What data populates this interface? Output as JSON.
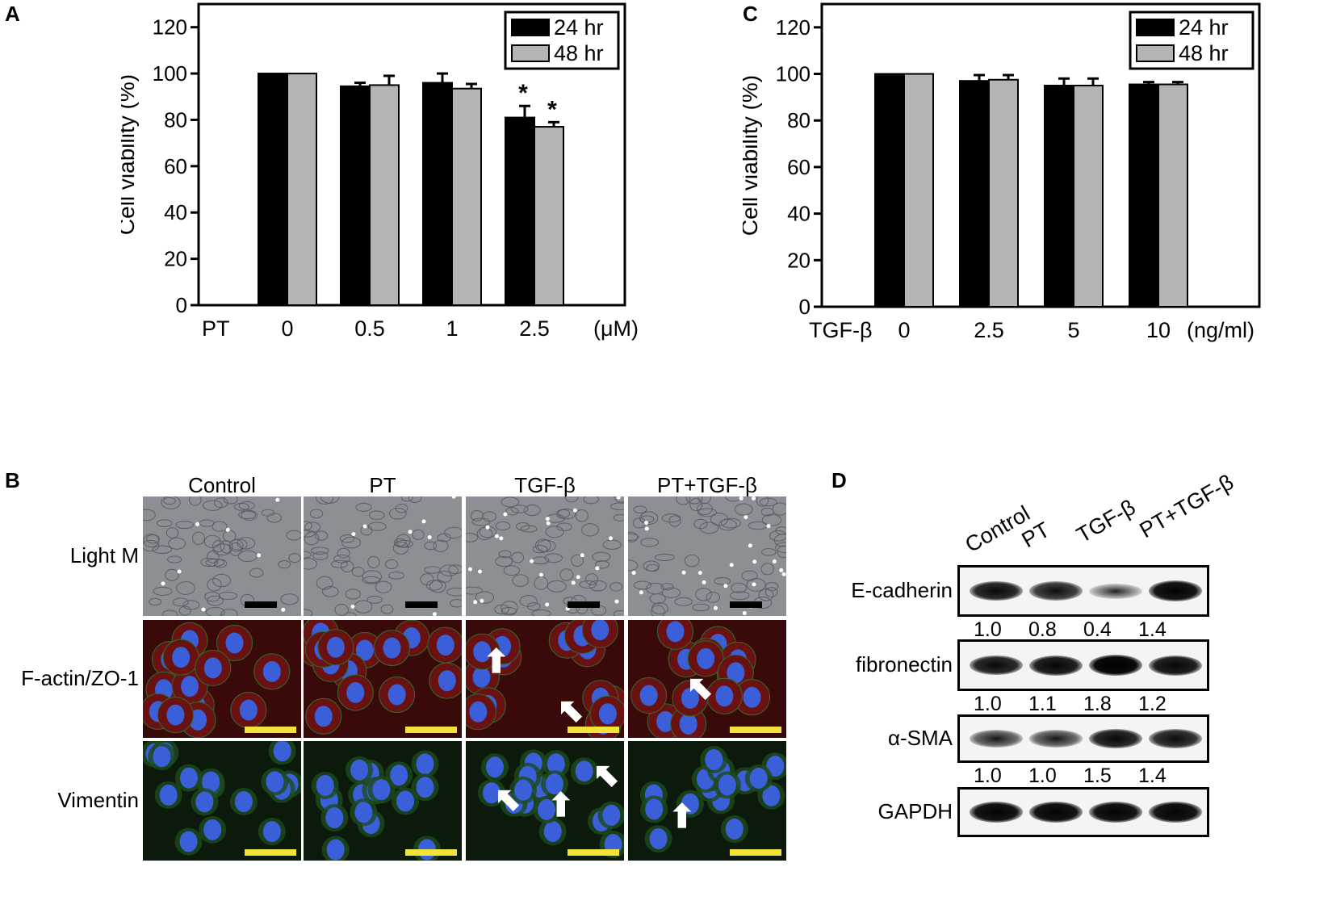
{
  "panels": {
    "A": "A",
    "B": "B",
    "C": "C",
    "D": "D"
  },
  "chart_data": [
    {
      "type": "bar",
      "panel": "A",
      "ylabel": "Cell viability (%)",
      "xprefix": "PT",
      "xunit": "(μM)",
      "categories": [
        "0",
        "0.5",
        "1",
        "2.5"
      ],
      "ylim": [
        0,
        130
      ],
      "yticks": [
        "0",
        "20",
        "40",
        "60",
        "80",
        "100",
        "120"
      ],
      "series": [
        {
          "name": "24 hr",
          "color": "#000000",
          "values": [
            100,
            94.5,
            96,
            81
          ],
          "errors": [
            0,
            1.5,
            4,
            5
          ]
        },
        {
          "name": "48 hr",
          "color": "#b4b4b4",
          "values": [
            100,
            95,
            93.5,
            77
          ],
          "errors": [
            0,
            4,
            2,
            2
          ]
        }
      ],
      "significance": [
        "",
        "",
        "",
        "*"
      ],
      "legend": "top-right"
    },
    {
      "type": "bar",
      "panel": "C",
      "ylabel": "Cell viability (%)",
      "xprefix": "TGF-β",
      "xunit": "(ng/ml)",
      "categories": [
        "0",
        "2.5",
        "5",
        "10"
      ],
      "ylim": [
        0,
        130
      ],
      "yticks": [
        "0",
        "20",
        "40",
        "60",
        "80",
        "100",
        "120"
      ],
      "series": [
        {
          "name": "24 hr",
          "color": "#000000",
          "values": [
            100,
            97,
            95,
            95.5
          ],
          "errors": [
            0,
            2.5,
            3,
            1
          ]
        },
        {
          "name": "48 hr",
          "color": "#b4b4b4",
          "values": [
            100,
            97.5,
            95,
            95.5
          ],
          "errors": [
            0,
            2,
            3,
            1
          ]
        }
      ],
      "legend": "top-right"
    }
  ],
  "microscopy": {
    "columns": [
      "Control",
      "PT",
      "TGF-β",
      "PT+TGF-β"
    ],
    "rows": [
      "Light M",
      "F-actin/ZO-1",
      "Vimentin"
    ],
    "colors": {
      "light": "#8c8f94",
      "factin_bg": "#3a0a0a",
      "factin_cell": "#6a1212",
      "nucleus": "#3a5fd8",
      "vim_bg": "#0c1a0c",
      "scalebar_light": "#000000",
      "scalebar_fluor": "#f2e33a"
    }
  },
  "western": {
    "lanes": [
      "Control",
      "PT",
      "TGF-β",
      "PT+TGF-β"
    ],
    "blots": [
      {
        "label": "E-cadherin",
        "quant": [
          "1.0",
          "0.8",
          "0.4",
          "1.4"
        ],
        "intensity": [
          0.85,
          0.75,
          0.3,
          0.95
        ]
      },
      {
        "label": "fibronectin",
        "quant": [
          "1.0",
          "1.1",
          "1.8",
          "1.2"
        ],
        "intensity": [
          0.85,
          0.9,
          1.0,
          0.9
        ]
      },
      {
        "label": "α-SMA",
        "quant": [
          "1.0",
          "1.0",
          "1.5",
          "1.4"
        ],
        "intensity": [
          0.55,
          0.55,
          0.85,
          0.8
        ]
      },
      {
        "label": "GAPDH",
        "quant": [],
        "intensity": [
          0.95,
          0.95,
          0.95,
          0.95
        ]
      }
    ]
  }
}
